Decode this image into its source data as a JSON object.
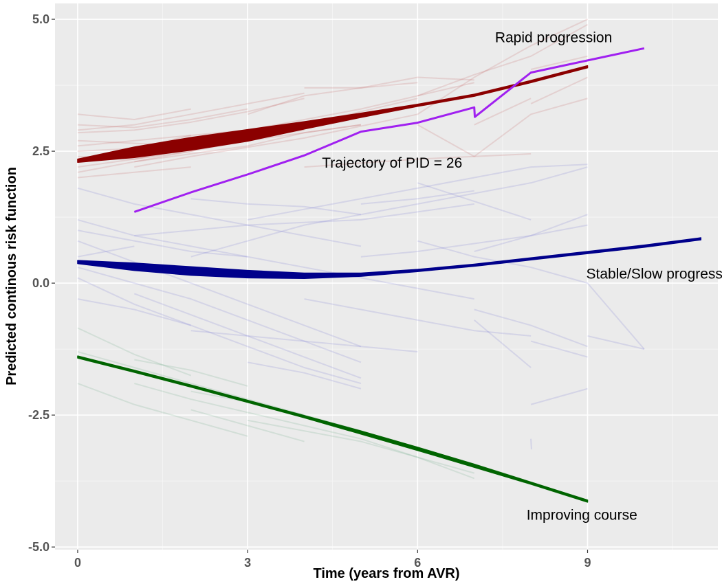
{
  "chart_data": {
    "type": "line",
    "xlabel": "Time (years from AVR)",
    "ylabel": "Predicted continous risk function",
    "xlim": [
      -0.4,
      11.3
    ],
    "ylim": [
      -5.05,
      5.3
    ],
    "x_ticks": [
      0,
      3,
      6,
      9
    ],
    "x_tick_labels": [
      "0",
      "3",
      "6",
      "9"
    ],
    "y_ticks": [
      5.0,
      2.5,
      0.0,
      -2.5,
      -5.0
    ],
    "y_tick_labels": [
      "5.0",
      "2.5",
      "0.0",
      "-2.5",
      "-5.0"
    ],
    "grid": true,
    "panel_background": "#EBEBEB",
    "grid_color": "#FFFFFF",
    "legend": "none",
    "series": [
      {
        "color": "#8B0000",
        "x": [
          0,
          1,
          2,
          3,
          4,
          5,
          6,
          7,
          8,
          9
        ],
        "y": [
          2.32,
          2.48,
          2.64,
          2.8,
          2.99,
          3.18,
          3.37,
          3.56,
          3.82,
          4.1
        ],
        "band_half_width": [
          0.03,
          0.1,
          0.12,
          0.11,
          0.07,
          0.04,
          0.02,
          0.02,
          0.02,
          0.02
        ]
      },
      {
        "color": "#00008B",
        "x": [
          0,
          1,
          2,
          3,
          4,
          5,
          6,
          7,
          8,
          9,
          10,
          11
        ],
        "y": [
          0.4,
          0.31,
          0.23,
          0.17,
          0.14,
          0.16,
          0.24,
          0.34,
          0.46,
          0.58,
          0.7,
          0.84
        ],
        "band_half_width": [
          0.03,
          0.07,
          0.08,
          0.07,
          0.05,
          0.03,
          0.02,
          0.02,
          0.02,
          0.02,
          0.02,
          0.02
        ]
      },
      {
        "color": "#006400",
        "x": [
          0,
          1,
          2,
          3,
          4,
          5,
          6,
          7,
          8,
          9
        ],
        "y": [
          -1.4,
          -1.67,
          -1.95,
          -2.24,
          -2.53,
          -2.83,
          -3.14,
          -3.46,
          -3.79,
          -4.13
        ],
        "band_half_width": [
          0.02,
          0.02,
          0.02,
          0.02,
          0.02,
          0.03,
          0.03,
          0.03,
          0.02,
          0.02
        ]
      },
      {
        "color": "#A020F0",
        "x": [
          1,
          2,
          3,
          4,
          5,
          6,
          7,
          7.01,
          8,
          10
        ],
        "y": [
          1.35,
          1.72,
          2.06,
          2.42,
          2.87,
          3.04,
          3.33,
          3.15,
          3.99,
          4.45
        ]
      }
    ],
    "individual_trajectories": {
      "red": [
        {
          "x": [
            0,
            1,
            2,
            3,
            4
          ],
          "y": [
            2.85,
            2.9,
            3.05,
            3.25,
            3.5
          ]
        },
        {
          "x": [
            0,
            1,
            2
          ],
          "y": [
            2.5,
            2.55,
            2.8
          ]
        },
        {
          "x": [
            0,
            1,
            2,
            3
          ],
          "y": [
            3.0,
            2.95,
            3.1,
            3.3
          ]
        },
        {
          "x": [
            0,
            2,
            4,
            6
          ],
          "y": [
            2.2,
            2.5,
            3.0,
            3.5
          ]
        },
        {
          "x": [
            0,
            1,
            3,
            5,
            7
          ],
          "y": [
            2.6,
            2.7,
            2.9,
            3.3,
            3.8
          ]
        },
        {
          "x": [
            1,
            2,
            3,
            5
          ],
          "y": [
            2.3,
            2.5,
            2.7,
            3.0
          ]
        },
        {
          "x": [
            0,
            1,
            2,
            4
          ],
          "y": [
            2.9,
            3.0,
            3.2,
            3.6
          ]
        },
        {
          "x": [
            0,
            1,
            2,
            3,
            4,
            5
          ],
          "y": [
            2.1,
            2.3,
            2.45,
            2.6,
            2.85,
            3.0
          ]
        },
        {
          "x": [
            0,
            1,
            2
          ],
          "y": [
            3.2,
            3.1,
            3.3
          ]
        },
        {
          "x": [
            0,
            1,
            2,
            3
          ],
          "y": [
            2.4,
            2.35,
            2.55,
            2.9
          ]
        },
        {
          "x": [
            0,
            2,
            4
          ],
          "y": [
            2.7,
            2.6,
            2.9
          ]
        },
        {
          "x": [
            1,
            2,
            4,
            6,
            7
          ],
          "y": [
            2.2,
            2.4,
            2.75,
            3.2,
            3.9
          ]
        },
        {
          "x": [
            4,
            5,
            6,
            7
          ],
          "y": [
            3.7,
            3.7,
            3.9,
            3.85
          ]
        },
        {
          "x": [
            3,
            4,
            5,
            6
          ],
          "y": [
            3.2,
            3.55,
            3.7,
            3.8
          ]
        },
        {
          "x": [
            6,
            7,
            8,
            9
          ],
          "y": [
            3.55,
            3.95,
            4.3,
            4.9
          ]
        },
        {
          "x": [
            7,
            8,
            9
          ],
          "y": [
            3.9,
            4.5,
            5.0
          ]
        },
        {
          "x": [
            8,
            9
          ],
          "y": [
            3.4,
            3.9
          ]
        },
        {
          "x": [
            7,
            8
          ],
          "y": [
            3.0,
            3.5
          ]
        },
        {
          "x": [
            6,
            7,
            8,
            9
          ],
          "y": [
            3.0,
            2.4,
            3.2,
            3.5
          ]
        },
        {
          "x": [
            8,
            9
          ],
          "y": [
            4.05,
            4.3
          ]
        },
        {
          "x": [
            4,
            6,
            8
          ],
          "y": [
            2.2,
            2.35,
            2.45
          ]
        },
        {
          "x": [
            0,
            1,
            2
          ],
          "y": [
            2.0,
            2.1,
            2.2
          ]
        }
      ],
      "blue": [
        {
          "x": [
            0,
            1,
            2,
            3,
            4,
            5
          ],
          "y": [
            1.8,
            1.5,
            1.3,
            1.1,
            0.9,
            0.7
          ]
        },
        {
          "x": [
            0,
            1,
            2,
            3,
            4,
            5,
            6,
            7
          ],
          "y": [
            1.2,
            0.9,
            0.7,
            0.5,
            0.3,
            0.1,
            -0.1,
            -0.3
          ]
        },
        {
          "x": [
            0,
            1,
            2,
            3,
            4,
            5
          ],
          "y": [
            0.8,
            0.4,
            0.0,
            -0.4,
            -0.8,
            -1.2
          ]
        },
        {
          "x": [
            0,
            1,
            2,
            3,
            4,
            5
          ],
          "y": [
            0.3,
            0.0,
            -0.3,
            -0.7,
            -1.1,
            -1.5
          ]
        },
        {
          "x": [
            0,
            1,
            2,
            3,
            4,
            5
          ],
          "y": [
            0.1,
            -0.4,
            -0.8,
            -1.2,
            -1.6,
            -1.9
          ]
        },
        {
          "x": [
            1,
            2,
            3,
            4,
            5
          ],
          "y": [
            -0.2,
            -0.6,
            -1.0,
            -1.4,
            -1.8
          ]
        },
        {
          "x": [
            2,
            3,
            4,
            5,
            6,
            7,
            8,
            9
          ],
          "y": [
            0.5,
            0.8,
            1.1,
            1.3,
            1.5,
            1.7,
            1.9,
            2.2
          ]
        },
        {
          "x": [
            3,
            4,
            5,
            6,
            7,
            8,
            9
          ],
          "y": [
            1.2,
            1.4,
            1.6,
            1.8,
            2.0,
            2.2,
            2.25
          ]
        },
        {
          "x": [
            5,
            6,
            7,
            8,
            9
          ],
          "y": [
            0.5,
            0.6,
            0.75,
            0.9,
            1.3
          ]
        },
        {
          "x": [
            6,
            7,
            8,
            9,
            10
          ],
          "y": [
            0.8,
            0.5,
            0.3,
            0.0,
            -1.25
          ]
        },
        {
          "x": [
            7,
            8,
            9
          ],
          "y": [
            -0.5,
            -0.8,
            -1.2
          ]
        },
        {
          "x": [
            8,
            9
          ],
          "y": [
            -1.1,
            -1.4
          ]
        },
        {
          "x": [
            8,
            9
          ],
          "y": [
            -2.3,
            -2.0
          ]
        },
        {
          "x": [
            0,
            1,
            2,
            3
          ],
          "y": [
            1.0,
            0.8,
            0.6,
            0.5
          ]
        },
        {
          "x": [
            1,
            3,
            5,
            7
          ],
          "y": [
            0.9,
            1.1,
            1.2,
            1.5
          ]
        },
        {
          "x": [
            2,
            4,
            6
          ],
          "y": [
            -0.9,
            -1.1,
            -1.3
          ]
        },
        {
          "x": [
            3,
            4,
            5
          ],
          "y": [
            -1.5,
            -1.7,
            -2.0
          ]
        },
        {
          "x": [
            4,
            5,
            6,
            7,
            8
          ],
          "y": [
            -0.3,
            -0.5,
            -0.7,
            -0.9,
            -1.0
          ]
        },
        {
          "x": [
            5,
            6,
            7
          ],
          "y": [
            1.5,
            1.6,
            1.75
          ]
        },
        {
          "x": [
            6,
            7,
            8
          ],
          "y": [
            1.9,
            1.55,
            1.2
          ]
        },
        {
          "x": [
            0,
            1,
            2
          ],
          "y": [
            -0.3,
            -0.5,
            -0.8
          ]
        },
        {
          "x": [
            0,
            1
          ],
          "y": [
            0.5,
            0.7
          ]
        },
        {
          "x": [
            2,
            3,
            4,
            5
          ],
          "y": [
            1.6,
            1.5,
            1.45,
            1.3
          ]
        },
        {
          "x": [
            7,
            8,
            9
          ],
          "y": [
            0.6,
            0.9,
            1.1
          ]
        },
        {
          "x": [
            7,
            8
          ],
          "y": [
            -0.7,
            -1.6
          ]
        },
        {
          "x": [
            9,
            10
          ],
          "y": [
            -1.0,
            -1.25
          ]
        },
        {
          "x": [
            8,
            8.01
          ],
          "y": [
            -2.95,
            -3.15
          ]
        }
      ],
      "green": [
        {
          "x": [
            0,
            1,
            2,
            3,
            4,
            5
          ],
          "y": [
            -1.3,
            -1.6,
            -1.9,
            -2.2,
            -2.5,
            -2.8
          ]
        },
        {
          "x": [
            0,
            1,
            2,
            3
          ],
          "y": [
            -1.9,
            -2.3,
            -2.6,
            -2.9
          ]
        },
        {
          "x": [
            1,
            2,
            3,
            4,
            5,
            6,
            7
          ],
          "y": [
            -1.9,
            -2.2,
            -2.45,
            -2.7,
            -2.95,
            -3.3,
            -3.7
          ]
        },
        {
          "x": [
            2,
            3,
            4
          ],
          "y": [
            -2.4,
            -2.7,
            -3.0
          ]
        },
        {
          "x": [
            0,
            1,
            2
          ],
          "y": [
            -0.85,
            -1.35,
            -1.75
          ]
        },
        {
          "x": [
            1,
            2,
            3
          ],
          "y": [
            -1.45,
            -1.65,
            -1.95
          ]
        },
        {
          "x": [
            3,
            4,
            5,
            6,
            7
          ],
          "y": [
            -2.6,
            -2.8,
            -3.0,
            -3.3,
            -3.6
          ]
        },
        {
          "x": [
            2,
            3,
            4
          ],
          "y": [
            -2.05,
            -2.25,
            -2.5
          ]
        }
      ]
    },
    "annotations": [
      {
        "text": "Rapid progression",
        "x": 8.4,
        "y": 4.65
      },
      {
        "text": "Trajectory of PID = 26",
        "x": 5.55,
        "y": 2.27
      },
      {
        "text": "Stable/Slow progression",
        "x": 10.35,
        "y": 0.17
      },
      {
        "text": "Improving course",
        "x": 8.9,
        "y": -4.4
      }
    ]
  }
}
